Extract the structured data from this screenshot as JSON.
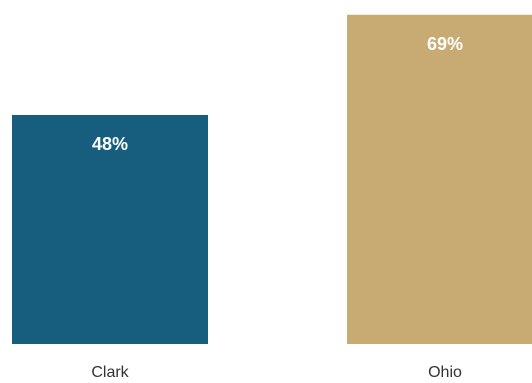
{
  "chart_data": {
    "type": "bar",
    "categories": [
      "Clark",
      "Ohio"
    ],
    "values": [
      48,
      69
    ],
    "data_labels": [
      "48%",
      "69%"
    ],
    "colors": [
      "#175D7E",
      "#C8AA73"
    ],
    "ylim": [
      0,
      70
    ],
    "grid": false,
    "legend": "none"
  }
}
